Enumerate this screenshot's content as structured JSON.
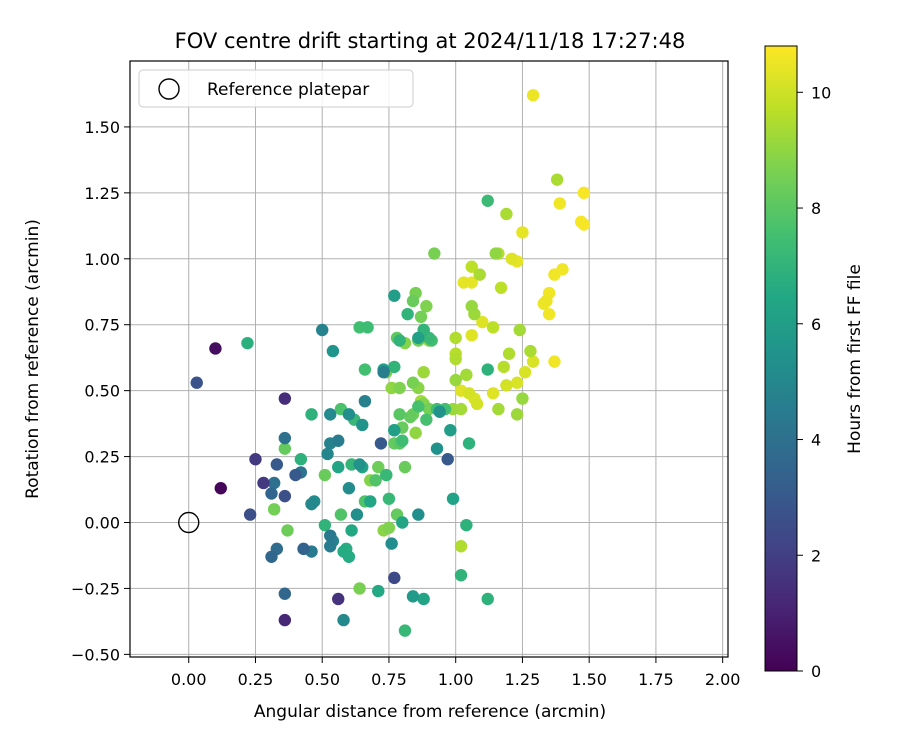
{
  "chart_data": {
    "type": "scatter",
    "title": "FOV centre drift starting at 2024/11/18 17:27:48",
    "xlabel": "Angular distance from reference (arcmin)",
    "ylabel": "Rotation from reference (arcmin)",
    "xlim": [
      -0.22,
      2.02
    ],
    "ylim": [
      -0.51,
      1.75
    ],
    "xticks": [
      0.0,
      0.25,
      0.5,
      0.75,
      1.0,
      1.25,
      1.5,
      1.75,
      2.0
    ],
    "xtick_labels": [
      "0.00",
      "0.25",
      "0.50",
      "0.75",
      "1.00",
      "1.25",
      "1.50",
      "1.75",
      "2.00"
    ],
    "yticks": [
      -0.5,
      -0.25,
      0.0,
      0.25,
      0.5,
      0.75,
      1.0,
      1.25,
      1.5
    ],
    "ytick_labels": [
      "−0.50",
      "−0.25",
      "0.00",
      "0.25",
      "0.50",
      "0.75",
      "1.00",
      "1.25",
      "1.50"
    ],
    "grid": true,
    "legend": {
      "placement": "top-left",
      "entries": [
        "Reference platepar"
      ]
    },
    "reference_point": {
      "x": 0.0,
      "y": 0.0
    },
    "colorbar": {
      "label": "Hours from first FF file",
      "colormap": "viridis",
      "range": [
        0,
        10.8
      ],
      "ticks": [
        0,
        2,
        4,
        6,
        8,
        10
      ],
      "tick_labels": [
        "0",
        "2",
        "4",
        "6",
        "8",
        "10"
      ]
    },
    "points": [
      {
        "x": 1.29,
        "y": 1.62,
        "h": 10.5
      },
      {
        "x": 1.48,
        "y": 1.25,
        "h": 10.7
      },
      {
        "x": 1.39,
        "y": 1.21,
        "h": 10.6
      },
      {
        "x": 1.47,
        "y": 1.14,
        "h": 10.7
      },
      {
        "x": 1.48,
        "y": 1.13,
        "h": 10.7
      },
      {
        "x": 1.4,
        "y": 0.96,
        "h": 10.6
      },
      {
        "x": 1.37,
        "y": 0.94,
        "h": 10.6
      },
      {
        "x": 1.35,
        "y": 0.87,
        "h": 10.6
      },
      {
        "x": 1.34,
        "y": 0.84,
        "h": 10.5
      },
      {
        "x": 1.33,
        "y": 0.83,
        "h": 10.5
      },
      {
        "x": 1.35,
        "y": 0.79,
        "h": 10.6
      },
      {
        "x": 1.37,
        "y": 0.61,
        "h": 10.6
      },
      {
        "x": 1.25,
        "y": 1.1,
        "h": 10.4
      },
      {
        "x": 1.21,
        "y": 1.0,
        "h": 10.3
      },
      {
        "x": 1.23,
        "y": 0.99,
        "h": 10.4
      },
      {
        "x": 1.03,
        "y": 0.91,
        "h": 10.4
      },
      {
        "x": 1.06,
        "y": 0.91,
        "h": 10.4
      },
      {
        "x": 1.1,
        "y": 0.76,
        "h": 10.3
      },
      {
        "x": 1.06,
        "y": 0.71,
        "h": 10.3
      },
      {
        "x": 1.26,
        "y": 0.57,
        "h": 10.2
      },
      {
        "x": 1.29,
        "y": 0.61,
        "h": 10.2
      },
      {
        "x": 1.02,
        "y": 0.5,
        "h": 10.3
      },
      {
        "x": 1.14,
        "y": 0.49,
        "h": 10.3
      },
      {
        "x": 1.07,
        "y": 0.47,
        "h": 10.2
      },
      {
        "x": 1.23,
        "y": 0.53,
        "h": 10.2
      },
      {
        "x": 1.08,
        "y": 0.45,
        "h": 10.1
      },
      {
        "x": 1.05,
        "y": 0.49,
        "h": 10.1
      },
      {
        "x": 1.19,
        "y": 0.52,
        "h": 10.1
      },
      {
        "x": 1.38,
        "y": 1.3,
        "h": 9.4
      },
      {
        "x": 1.19,
        "y": 1.17,
        "h": 9.4
      },
      {
        "x": 1.16,
        "y": 1.02,
        "h": 9.6
      },
      {
        "x": 1.17,
        "y": 0.89,
        "h": 9.7
      },
      {
        "x": 1.24,
        "y": 0.73,
        "h": 9.3
      },
      {
        "x": 1.28,
        "y": 0.65,
        "h": 9.4
      },
      {
        "x": 1.2,
        "y": 0.64,
        "h": 9.5
      },
      {
        "x": 1.18,
        "y": 0.59,
        "h": 9.6
      },
      {
        "x": 1.14,
        "y": 0.74,
        "h": 9.7
      },
      {
        "x": 1.06,
        "y": 0.97,
        "h": 9.7
      },
      {
        "x": 1.09,
        "y": 0.94,
        "h": 9.4
      },
      {
        "x": 1.07,
        "y": 0.79,
        "h": 9.2
      },
      {
        "x": 1.06,
        "y": 0.82,
        "h": 9.1
      },
      {
        "x": 1.0,
        "y": 0.7,
        "h": 9.5
      },
      {
        "x": 1.0,
        "y": 0.64,
        "h": 9.6
      },
      {
        "x": 1.0,
        "y": 0.62,
        "h": 9.5
      },
      {
        "x": 1.04,
        "y": 0.56,
        "h": 9.3
      },
      {
        "x": 1.0,
        "y": 0.54,
        "h": 9.1
      },
      {
        "x": 0.99,
        "y": 0.43,
        "h": 9.2
      },
      {
        "x": 1.02,
        "y": 0.43,
        "h": 9.3
      },
      {
        "x": 1.16,
        "y": 0.43,
        "h": 9.3
      },
      {
        "x": 1.23,
        "y": 0.41,
        "h": 9.2
      },
      {
        "x": 1.25,
        "y": 0.47,
        "h": 9.1
      },
      {
        "x": 1.02,
        "y": -0.09,
        "h": 9.5
      },
      {
        "x": 1.15,
        "y": 1.02,
        "h": 9.0
      },
      {
        "x": 0.92,
        "y": 1.02,
        "h": 8.6
      },
      {
        "x": 0.89,
        "y": 0.82,
        "h": 8.7
      },
      {
        "x": 0.85,
        "y": 0.87,
        "h": 8.6
      },
      {
        "x": 0.84,
        "y": 0.84,
        "h": 8.3
      },
      {
        "x": 0.87,
        "y": 0.78,
        "h": 8.5
      },
      {
        "x": 0.88,
        "y": 0.73,
        "h": 8.3
      },
      {
        "x": 0.86,
        "y": 0.69,
        "h": 8.4
      },
      {
        "x": 0.81,
        "y": 0.68,
        "h": 8.8
      },
      {
        "x": 0.88,
        "y": 0.57,
        "h": 9.2
      },
      {
        "x": 0.9,
        "y": 0.69,
        "h": 8.9
      },
      {
        "x": 0.78,
        "y": 0.7,
        "h": 8.1
      },
      {
        "x": 0.74,
        "y": 0.57,
        "h": 8.6
      },
      {
        "x": 0.76,
        "y": 0.51,
        "h": 9.0
      },
      {
        "x": 0.79,
        "y": 0.51,
        "h": 8.7
      },
      {
        "x": 0.84,
        "y": 0.53,
        "h": 8.6
      },
      {
        "x": 0.86,
        "y": 0.51,
        "h": 8.9
      },
      {
        "x": 0.87,
        "y": 0.46,
        "h": 9.3
      },
      {
        "x": 0.9,
        "y": 0.43,
        "h": 8.5
      },
      {
        "x": 0.84,
        "y": 0.41,
        "h": 8.4
      },
      {
        "x": 0.88,
        "y": 0.45,
        "h": 8.8
      },
      {
        "x": 0.85,
        "y": 0.34,
        "h": 9.0
      },
      {
        "x": 0.83,
        "y": 0.4,
        "h": 8.2
      },
      {
        "x": 0.79,
        "y": 0.41,
        "h": 8.0
      },
      {
        "x": 0.8,
        "y": 0.36,
        "h": 8.3
      },
      {
        "x": 0.77,
        "y": 0.3,
        "h": 8.2
      },
      {
        "x": 0.79,
        "y": 0.3,
        "h": 8.0
      },
      {
        "x": 0.81,
        "y": 0.21,
        "h": 8.3
      },
      {
        "x": 0.71,
        "y": 0.21,
        "h": 8.4
      },
      {
        "x": 0.74,
        "y": 0.18,
        "h": 8.6
      },
      {
        "x": 0.68,
        "y": 0.16,
        "h": 8.8
      },
      {
        "x": 0.73,
        "y": -0.03,
        "h": 8.9
      },
      {
        "x": 0.75,
        "y": -0.02,
        "h": 8.7
      },
      {
        "x": 0.78,
        "y": 0.03,
        "h": 8.2
      },
      {
        "x": 0.64,
        "y": -0.25,
        "h": 8.6
      },
      {
        "x": 0.37,
        "y": -0.03,
        "h": 8.4
      },
      {
        "x": 0.32,
        "y": 0.05,
        "h": 8.5
      },
      {
        "x": 0.36,
        "y": 0.28,
        "h": 8.2
      },
      {
        "x": 0.51,
        "y": 0.18,
        "h": 8.3
      },
      {
        "x": 0.57,
        "y": 0.43,
        "h": 7.7
      },
      {
        "x": 0.67,
        "y": 0.74,
        "h": 7.4
      },
      {
        "x": 0.64,
        "y": 0.74,
        "h": 7.5
      },
      {
        "x": 0.66,
        "y": 0.08,
        "h": 7.8
      },
      {
        "x": 0.57,
        "y": 0.03,
        "h": 7.8
      },
      {
        "x": 0.7,
        "y": 0.16,
        "h": 7.8
      },
      {
        "x": 0.74,
        "y": 0.18,
        "h": 7.2
      },
      {
        "x": 0.77,
        "y": 0.35,
        "h": 7.6
      },
      {
        "x": 0.8,
        "y": 0.31,
        "h": 7.4
      },
      {
        "x": 0.86,
        "y": 0.44,
        "h": 7.6
      },
      {
        "x": 0.89,
        "y": 0.39,
        "h": 7.6
      },
      {
        "x": 0.93,
        "y": 0.43,
        "h": 7.4
      },
      {
        "x": 0.96,
        "y": 0.43,
        "h": 7.5
      },
      {
        "x": 0.91,
        "y": 0.69,
        "h": 7.5
      },
      {
        "x": 0.9,
        "y": 0.7,
        "h": 7.2
      },
      {
        "x": 0.88,
        "y": 0.73,
        "h": 7.0
      },
      {
        "x": 0.82,
        "y": 0.79,
        "h": 7.0
      },
      {
        "x": 0.79,
        "y": 0.69,
        "h": 7.0
      },
      {
        "x": 0.77,
        "y": 0.59,
        "h": 7.0
      },
      {
        "x": 0.66,
        "y": 0.58,
        "h": 7.5
      },
      {
        "x": 0.62,
        "y": 0.39,
        "h": 7.2
      },
      {
        "x": 0.46,
        "y": 0.41,
        "h": 6.9
      },
      {
        "x": 0.42,
        "y": 0.24,
        "h": 6.9
      },
      {
        "x": 0.46,
        "y": 0.07,
        "h": 6.8
      },
      {
        "x": 0.51,
        "y": -0.01,
        "h": 7.0
      },
      {
        "x": 0.61,
        "y": 0.22,
        "h": 7.1
      },
      {
        "x": 0.75,
        "y": 0.09,
        "h": 7.2
      },
      {
        "x": 0.81,
        "y": -0.41,
        "h": 7.2
      },
      {
        "x": 1.02,
        "y": -0.2,
        "h": 7.0
      },
      {
        "x": 1.04,
        "y": -0.01,
        "h": 6.9
      },
      {
        "x": 1.05,
        "y": 0.3,
        "h": 6.9
      },
      {
        "x": 1.12,
        "y": -0.29,
        "h": 6.9
      },
      {
        "x": 1.12,
        "y": 0.58,
        "h": 6.9
      },
      {
        "x": 1.12,
        "y": 1.22,
        "h": 7.3
      },
      {
        "x": 0.22,
        "y": 0.68,
        "h": 6.8
      },
      {
        "x": 0.58,
        "y": -0.11,
        "h": 6.6
      },
      {
        "x": 0.6,
        "y": -0.13,
        "h": 6.6
      },
      {
        "x": 0.61,
        "y": -0.03,
        "h": 6.5
      },
      {
        "x": 0.71,
        "y": -0.26,
        "h": 6.5
      },
      {
        "x": 0.59,
        "y": -0.1,
        "h": 6.7
      },
      {
        "x": 0.65,
        "y": 0.21,
        "h": 6.3
      },
      {
        "x": 0.73,
        "y": 0.58,
        "h": 6.0
      },
      {
        "x": 0.77,
        "y": 0.86,
        "h": 6.0
      },
      {
        "x": 0.86,
        "y": 0.7,
        "h": 6.1
      },
      {
        "x": 0.88,
        "y": -0.29,
        "h": 6.3
      },
      {
        "x": 0.84,
        "y": -0.28,
        "h": 5.8
      },
      {
        "x": 0.8,
        "y": 0.0,
        "h": 6.3
      },
      {
        "x": 0.77,
        "y": 0.35,
        "h": 6.1
      },
      {
        "x": 0.68,
        "y": 0.08,
        "h": 6.4
      },
      {
        "x": 0.56,
        "y": 0.21,
        "h": 6.3
      },
      {
        "x": 0.98,
        "y": 0.35,
        "h": 6.0
      },
      {
        "x": 0.99,
        "y": 0.09,
        "h": 6.2
      },
      {
        "x": 0.54,
        "y": 0.65,
        "h": 5.6
      },
      {
        "x": 0.64,
        "y": 0.22,
        "h": 5.5
      },
      {
        "x": 0.65,
        "y": 0.37,
        "h": 5.5
      },
      {
        "x": 0.94,
        "y": 0.42,
        "h": 5.5
      },
      {
        "x": 0.93,
        "y": 0.28,
        "h": 5.4
      },
      {
        "x": 0.86,
        "y": 0.03,
        "h": 5.3
      },
      {
        "x": 0.76,
        "y": -0.08,
        "h": 5.2
      },
      {
        "x": 0.47,
        "y": 0.08,
        "h": 5.2
      },
      {
        "x": 0.46,
        "y": 0.07,
        "h": 5.0
      },
      {
        "x": 0.53,
        "y": 0.41,
        "h": 5.1
      },
      {
        "x": 0.6,
        "y": 0.41,
        "h": 5.3
      },
      {
        "x": 0.6,
        "y": 0.13,
        "h": 5.2
      },
      {
        "x": 0.63,
        "y": 0.03,
        "h": 5.3
      },
      {
        "x": 0.58,
        "y": -0.37,
        "h": 5.0
      },
      {
        "x": 0.52,
        "y": 0.26,
        "h": 4.9
      },
      {
        "x": 0.53,
        "y": 0.3,
        "h": 4.8
      },
      {
        "x": 0.56,
        "y": 0.31,
        "h": 4.5
      },
      {
        "x": 0.5,
        "y": 0.73,
        "h": 4.8
      },
      {
        "x": 0.46,
        "y": -0.11,
        "h": 4.4
      },
      {
        "x": 0.53,
        "y": -0.05,
        "h": 4.3
      },
      {
        "x": 0.54,
        "y": -0.07,
        "h": 4.8
      },
      {
        "x": 0.53,
        "y": -0.09,
        "h": 4.5
      },
      {
        "x": 0.66,
        "y": 0.46,
        "h": 4.7
      },
      {
        "x": 0.73,
        "y": 0.57,
        "h": 4.6
      },
      {
        "x": 0.42,
        "y": 0.19,
        "h": 4.1
      },
      {
        "x": 0.36,
        "y": 0.32,
        "h": 4.0
      },
      {
        "x": 0.32,
        "y": 0.15,
        "h": 4.0
      },
      {
        "x": 0.31,
        "y": 0.11,
        "h": 3.5
      },
      {
        "x": 0.31,
        "y": -0.13,
        "h": 3.6
      },
      {
        "x": 0.33,
        "y": -0.1,
        "h": 3.8
      },
      {
        "x": 0.43,
        "y": -0.1,
        "h": 3.4
      },
      {
        "x": 0.36,
        "y": -0.27,
        "h": 3.6
      },
      {
        "x": 0.72,
        "y": 0.3,
        "h": 3.0
      },
      {
        "x": 0.97,
        "y": 0.24,
        "h": 3.0
      },
      {
        "x": 0.4,
        "y": 0.18,
        "h": 3.0
      },
      {
        "x": 0.33,
        "y": 0.22,
        "h": 3.0
      },
      {
        "x": 0.77,
        "y": -0.21,
        "h": 2.4
      },
      {
        "x": 0.03,
        "y": 0.53,
        "h": 2.8
      },
      {
        "x": 0.23,
        "y": 0.03,
        "h": 2.6
      },
      {
        "x": 0.36,
        "y": 0.1,
        "h": 2.6
      },
      {
        "x": 0.28,
        "y": 0.15,
        "h": 1.8
      },
      {
        "x": 0.25,
        "y": 0.24,
        "h": 1.8
      },
      {
        "x": 0.36,
        "y": 0.47,
        "h": 1.4
      },
      {
        "x": 0.56,
        "y": -0.29,
        "h": 1.6
      },
      {
        "x": 0.36,
        "y": -0.37,
        "h": 1.2
      },
      {
        "x": 0.1,
        "y": 0.66,
        "h": 0.4
      },
      {
        "x": 0.12,
        "y": 0.13,
        "h": 0.2
      }
    ]
  }
}
